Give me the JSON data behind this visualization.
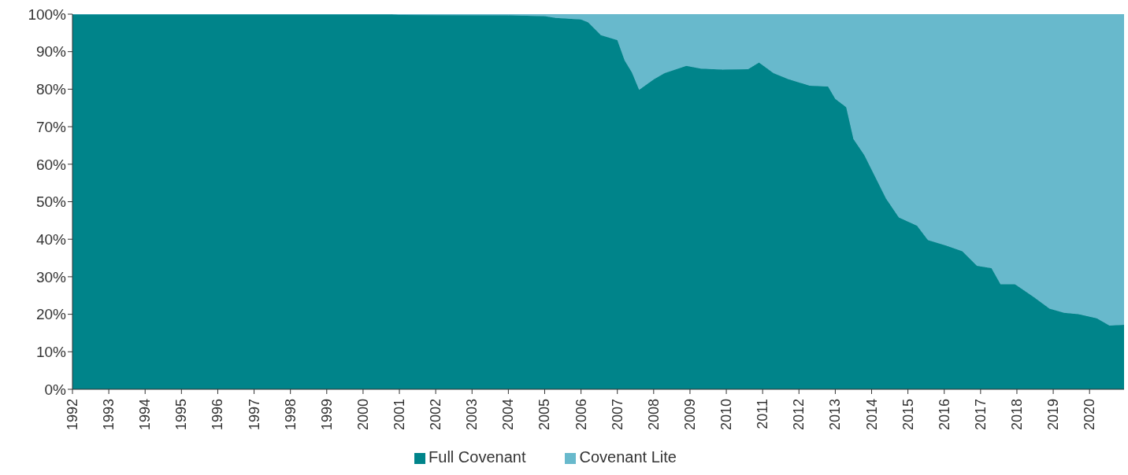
{
  "chart_data": {
    "type": "area",
    "stacked": true,
    "x": [
      1992,
      2000.8,
      2001.0,
      2004.0,
      2005.0,
      2005.3,
      2006.0,
      2006.2,
      2006.55,
      2007.0,
      2007.2,
      2007.4,
      2007.6,
      2008.0,
      2008.3,
      2008.9,
      2009.3,
      2009.9,
      2010.6,
      2010.9,
      2011.3,
      2011.7,
      2012.3,
      2012.8,
      2013.0,
      2013.3,
      2013.5,
      2013.8,
      2014.1,
      2014.4,
      2014.75,
      2015.25,
      2015.55,
      2016.05,
      2016.5,
      2016.9,
      2017.3,
      2017.55,
      2017.95,
      2018.45,
      2018.9,
      2019.3,
      2019.7,
      2020.2,
      2020.55,
      2020.95
    ],
    "series": [
      {
        "name": "Full Covenant",
        "color": "#00848a",
        "values": [
          100,
          100,
          99.8,
          99.7,
          99.5,
          99.0,
          98.6,
          97.8,
          94.4,
          93.1,
          87.7,
          84.5,
          79.8,
          82.6,
          84.3,
          86.2,
          85.5,
          85.2,
          85.3,
          87.1,
          84.3,
          82.7,
          80.9,
          80.7,
          77.4,
          75.2,
          66.7,
          62.4,
          56.6,
          50.8,
          45.8,
          43.6,
          39.8,
          38.3,
          36.8,
          32.9,
          32.3,
          28.0,
          28.0,
          24.7,
          21.5,
          20.4,
          20.0,
          18.9,
          17.0,
          17.2
        ]
      },
      {
        "name": "Covenant Lite",
        "color": "#68b9cc",
        "values": [
          0,
          0,
          0.2,
          0.3,
          0.5,
          1.0,
          1.4,
          2.2,
          5.6,
          6.9,
          12.3,
          15.5,
          20.2,
          17.4,
          15.7,
          13.8,
          14.5,
          14.8,
          14.7,
          12.9,
          15.7,
          17.3,
          19.1,
          19.3,
          22.6,
          24.8,
          33.3,
          37.6,
          43.4,
          49.2,
          54.2,
          56.4,
          60.2,
          61.7,
          63.2,
          67.1,
          67.7,
          72.0,
          72.0,
          75.3,
          78.5,
          79.6,
          80.0,
          81.1,
          83.0,
          82.8
        ]
      }
    ],
    "xlim": [
      1992,
      2020.95
    ],
    "xticks": [
      1992,
      1993,
      1994,
      1995,
      1996,
      1997,
      1998,
      1999,
      2000,
      2001,
      2002,
      2003,
      2004,
      2005,
      2006,
      2007,
      2008,
      2009,
      2010,
      2011,
      2012,
      2013,
      2014,
      2015,
      2016,
      2017,
      2018,
      2019,
      2020
    ],
    "ylim": [
      0,
      100
    ],
    "yticks": [
      {
        "value": 0,
        "label": "0%"
      },
      {
        "value": 10,
        "label": "10%"
      },
      {
        "value": 20,
        "label": "20%"
      },
      {
        "value": 30,
        "label": "30%"
      },
      {
        "value": 40,
        "label": "40%"
      },
      {
        "value": 50,
        "label": "50%"
      },
      {
        "value": 60,
        "label": "60%"
      },
      {
        "value": 70,
        "label": "70%"
      },
      {
        "value": 80,
        "label": "80%"
      },
      {
        "value": 90,
        "label": "90%"
      },
      {
        "value": 100,
        "label": "100%"
      }
    ],
    "legend": "bottom"
  }
}
